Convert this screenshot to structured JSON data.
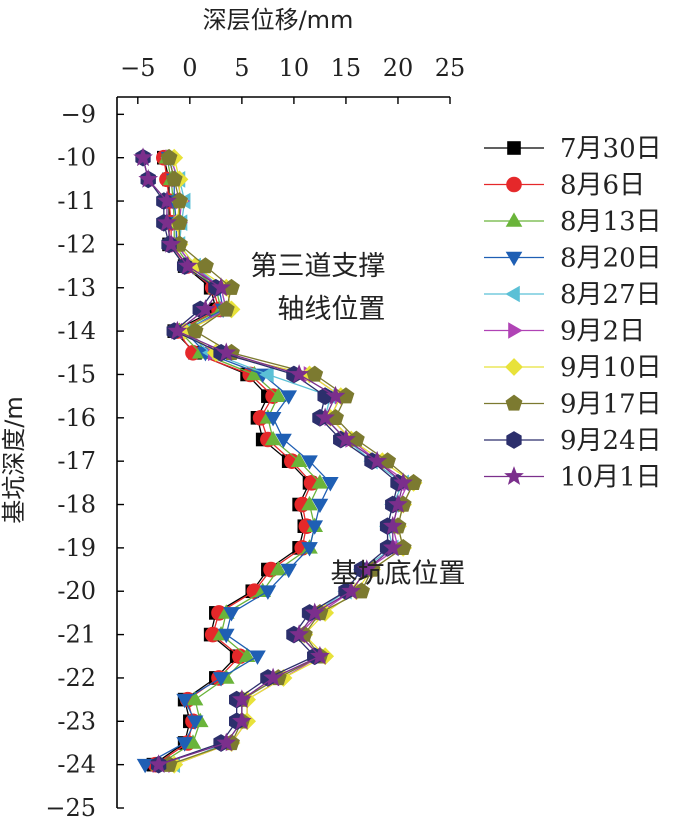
{
  "chart_data": {
    "type": "line",
    "xlabel": "深层位移/mm",
    "ylabel": "基坑深度/m",
    "xlim": [
      -7,
      25
    ],
    "ylim": [
      -25,
      -8.6
    ],
    "x_ticks": [
      -5,
      0,
      5,
      10,
      15,
      20,
      25
    ],
    "x_tick_labels": [
      "−5",
      "0",
      "5",
      "10",
      "15",
      "20",
      "25"
    ],
    "y_ticks": [
      -9,
      -10,
      -11,
      -12,
      -13,
      -14,
      -15,
      -16,
      -17,
      -18,
      -19,
      -20,
      -21,
      -22,
      -23,
      -24,
      -25
    ],
    "y_tick_labels": [
      "−9",
      "-10",
      "-11",
      "-12",
      "-13",
      "-14",
      "-15",
      "-16",
      "-17",
      "-18",
      "-19",
      "-20",
      "-21",
      "-22",
      "-23",
      "-24",
      "−25"
    ],
    "grid": false,
    "legend_position": "right",
    "annotations": [
      {
        "text": "第三道支撑",
        "x": 12.3,
        "y": -12.7
      },
      {
        "text": "轴线位置",
        "x": 13.6,
        "y": -13.7
      },
      {
        "text": "基坑底位置",
        "x": 20,
        "y": -19.8
      }
    ],
    "depths": [
      -10,
      -10.5,
      -11,
      -11.5,
      -12,
      -12.5,
      -13,
      -13.5,
      -14,
      -14.5,
      -15,
      -15.5,
      -16,
      -16.5,
      -17,
      -17.5,
      -18,
      -18.5,
      -19,
      -19.5,
      -20,
      -20.5,
      -21,
      -21.5,
      -22,
      -22.5,
      -23,
      -23.5,
      -24
    ],
    "series": [
      {
        "name": "7月30日",
        "color": "#000000",
        "marker": "square",
        "values": [
          -2.5,
          -2,
          -2,
          -2,
          -2,
          -0.5,
          2,
          2.5,
          -1.5,
          0.5,
          5.5,
          7.5,
          6.5,
          7,
          9.5,
          11.5,
          10.5,
          11,
          10.5,
          7.5,
          6,
          2.5,
          2,
          4.5,
          2.5,
          -0.5,
          0,
          -0.5,
          -3.5
        ]
      },
      {
        "name": "8月6日",
        "color": "#e5282a",
        "marker": "circle",
        "values": [
          -2.5,
          -2.2,
          -2,
          -1.8,
          -1.8,
          -0.3,
          2.2,
          2.8,
          -1.2,
          0.3,
          5.8,
          8,
          6.8,
          7.5,
          9.8,
          11.7,
          10.8,
          11.2,
          10.8,
          7.8,
          6.2,
          2.8,
          2.2,
          4.8,
          2.8,
          -0.2,
          0.3,
          -0.2,
          -3.3
        ]
      },
      {
        "name": "8月13日",
        "color": "#6ab43a",
        "marker": "triangle-up",
        "values": [
          -2.2,
          -1.8,
          -1.6,
          -1.5,
          -1.5,
          0,
          2.5,
          3,
          -1,
          1,
          6.2,
          8.5,
          7.5,
          8,
          10.5,
          12.5,
          11.5,
          12,
          11.5,
          8.5,
          7,
          3.5,
          3,
          5.5,
          3.5,
          0.5,
          1,
          0.3,
          -3
        ]
      },
      {
        "name": "8月20日",
        "color": "#1f5fb4",
        "marker": "triangle-down",
        "values": [
          -2,
          -1.5,
          -1.5,
          -1.3,
          -1.3,
          0.3,
          2.8,
          3.2,
          -0.5,
          1.5,
          7,
          9.5,
          8,
          9,
          11.5,
          13.5,
          12.5,
          12,
          11.5,
          9.5,
          7.5,
          4,
          3.5,
          6.5,
          3,
          -0.5,
          0.5,
          -0.5,
          -4.3
        ]
      },
      {
        "name": "8月27日",
        "color": "#5bc0d6",
        "marker": "triangle-left",
        "values": [
          -2,
          -1,
          -0.5,
          -0.8,
          -1,
          0.5,
          3,
          3.5,
          -0.5,
          2,
          7.5,
          13.5,
          13,
          15,
          17.5,
          20.5,
          19.5,
          19,
          19.5,
          16.5,
          15,
          12,
          10.5,
          12.5,
          8.5,
          5,
          5,
          3.5,
          -1.5
        ]
      },
      {
        "name": "9月2日",
        "color": "#b043b5",
        "marker": "triangle-right",
        "values": [
          -1.8,
          -1.2,
          -0.8,
          -1,
          -1.2,
          0.2,
          3,
          3.5,
          -0.3,
          2.3,
          11.5,
          14.5,
          13.5,
          15.5,
          18,
          21,
          20,
          19.5,
          20,
          17,
          15.5,
          12.5,
          10.5,
          12.5,
          9,
          5.5,
          5.5,
          4,
          -1.5
        ]
      },
      {
        "name": "9月10日",
        "color": "#e8e23a",
        "marker": "diamond",
        "values": [
          -1.5,
          -1,
          -1,
          -1.2,
          -1,
          0.5,
          3.5,
          4,
          -0.5,
          2.5,
          11.5,
          14.5,
          13.5,
          15.5,
          18.5,
          21.5,
          20.5,
          20,
          20.5,
          17.5,
          16,
          13,
          11,
          13,
          9,
          5.5,
          5.5,
          4,
          -1.5
        ]
      },
      {
        "name": "9月17日",
        "color": "#7c7a30",
        "marker": "pentagon",
        "values": [
          -2,
          -1.5,
          -1,
          -1,
          -1,
          1.5,
          4,
          3.5,
          0.5,
          4,
          12,
          15,
          14,
          16,
          19,
          21.5,
          20.5,
          20,
          20.5,
          17.5,
          16.5,
          12.5,
          11,
          12.5,
          8.5,
          5,
          5,
          4,
          -2
        ]
      },
      {
        "name": "9月24日",
        "color": "#2c2f6c",
        "marker": "hexagon",
        "values": [
          -4.5,
          -4,
          -2.5,
          -2.5,
          -2,
          -0.5,
          2.5,
          1,
          -1.5,
          3,
          10,
          13,
          12.5,
          14.5,
          17.5,
          20,
          19.5,
          19,
          19,
          16.5,
          15,
          11.5,
          10,
          12,
          7.5,
          4.5,
          4.5,
          3,
          -3
        ]
      },
      {
        "name": "10月1日",
        "color": "#7b2f8c",
        "marker": "star",
        "values": [
          -4.5,
          -4,
          -2.2,
          -2.2,
          -1.8,
          -0.2,
          3,
          1.5,
          -1.2,
          3.5,
          10.5,
          14,
          13,
          15,
          18,
          20.5,
          20,
          19.5,
          19.5,
          17,
          15.5,
          12,
          10.5,
          12.5,
          8,
          5,
          5,
          3.5,
          -3
        ]
      }
    ]
  }
}
